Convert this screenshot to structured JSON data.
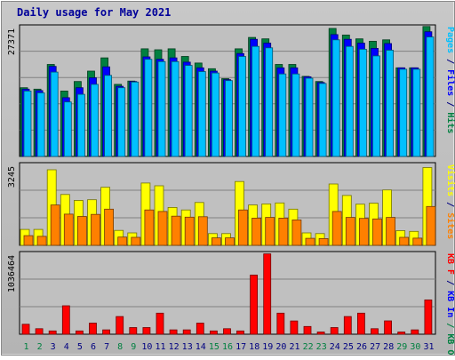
{
  "chart_data": {
    "type": "bar",
    "title": "Daily usage for May 2021",
    "categories": [
      "1",
      "2",
      "3",
      "4",
      "5",
      "6",
      "7",
      "8",
      "9",
      "10",
      "11",
      "12",
      "13",
      "14",
      "15",
      "16",
      "17",
      "18",
      "19",
      "20",
      "21",
      "22",
      "23",
      "24",
      "25",
      "26",
      "27",
      "28",
      "29",
      "30",
      "31"
    ],
    "weekend_days": [
      "1",
      "2",
      "8",
      "9",
      "15",
      "16",
      "22",
      "23",
      "29",
      "30"
    ],
    "panels": [
      {
        "name": "top",
        "ylabel": "27371",
        "ymax": 27371,
        "side_label": [
          {
            "text": "Pages",
            "color": "#00c0ff"
          },
          {
            "text": " / ",
            "color": "#000080"
          },
          {
            "text": "Files",
            "color": "#0000ff"
          },
          {
            "text": " / ",
            "color": "#000080"
          },
          {
            "text": "Hits",
            "color": "#008040"
          }
        ],
        "series": [
          {
            "name": "Hits",
            "color": "#008040",
            "values": [
              14500,
              14200,
              19400,
              13800,
              15800,
              18000,
              20800,
              15200,
              15900,
              22700,
              22500,
              22700,
              21100,
              19700,
              18500,
              16400,
              22700,
              25100,
              24800,
              19400,
              19400,
              16900,
              15800,
              27000,
              25600,
              24800,
              24300,
              24600,
              18700,
              18700,
              27400
            ]
          },
          {
            "name": "Files",
            "color": "#0000ff",
            "values": [
              14200,
              13900,
              19000,
              12400,
              14500,
              16600,
              18900,
              14800,
              15800,
              21000,
              20500,
              20800,
              19900,
              18700,
              18000,
              16200,
              21700,
              24700,
              23900,
              18700,
              18700,
              16800,
              15600,
              25700,
              24700,
              23900,
              22800,
              23800,
              18700,
              18700,
              26300
            ]
          },
          {
            "name": "Pages",
            "color": "#00c0ff",
            "values": [
              13800,
              13400,
              17800,
              11500,
              13100,
              15200,
              17100,
              14500,
              15700,
              20500,
              20000,
              20000,
              19200,
              17900,
              17600,
              16000,
              21100,
              23200,
              22900,
              17400,
              17400,
              16500,
              15400,
              24600,
              23200,
              22600,
              21200,
              22400,
              18400,
              18400,
              25200
            ]
          }
        ]
      },
      {
        "name": "middle",
        "ylabel": "3245",
        "ymax": 3245,
        "side_label": [
          {
            "text": "Visits",
            "color": "#ffff00"
          },
          {
            "text": " / ",
            "color": "#000080"
          },
          {
            "text": "Sites",
            "color": "#ff8000"
          }
        ],
        "series": [
          {
            "name": "Visits",
            "color": "#ffff00",
            "values": [
              640,
              640,
              3030,
              2040,
              1800,
              1830,
              2330,
              600,
              500,
              2500,
              2390,
              1520,
              1420,
              1720,
              470,
              470,
              2560,
              1620,
              1660,
              1700,
              1450,
              500,
              470,
              2460,
              2000,
              1650,
              1690,
              2220,
              590,
              560,
              3120
            ]
          },
          {
            "name": "Sites",
            "color": "#ff8000",
            "values": [
              390,
              360,
              1620,
              1250,
              1160,
              1240,
              1450,
              330,
              320,
              1420,
              1360,
              1170,
              1130,
              1150,
              300,
              300,
              1420,
              1090,
              1120,
              1090,
              1020,
              280,
              270,
              1360,
              1120,
              1080,
              1060,
              1120,
              320,
              290,
              1560
            ]
          }
        ]
      },
      {
        "name": "bottom",
        "ylabel": "1036464",
        "ymax": 1036464,
        "side_label": [
          {
            "text": "KB F",
            "color": "#ff0000"
          },
          {
            "text": " / ",
            "color": "#000080"
          },
          {
            "text": "KB In",
            "color": "#0000ff"
          },
          {
            "text": " / ",
            "color": "#008040"
          },
          {
            "text": "KB Out",
            "color": "#008040"
          }
        ],
        "series": [
          {
            "name": "KB F",
            "color": "#ff0000",
            "values": [
              128000,
              71000,
              42000,
              365000,
              42000,
              142000,
              56000,
              227000,
              85000,
              85000,
              270000,
              56000,
              56000,
              142000,
              42000,
              71000,
              42000,
              757000,
              1030000,
              270000,
              170000,
              99000,
              28000,
              85000,
              227000,
              270000,
              71000,
              171000,
              28000,
              56000,
              440000
            ]
          }
        ]
      }
    ]
  }
}
